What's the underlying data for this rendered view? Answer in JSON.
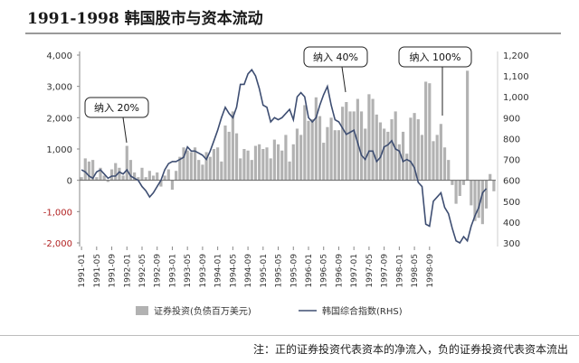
{
  "header": {
    "title": "1991-1998 韩国股市与资本流动"
  },
  "footnote": "注：正的证券投资代表资本的净流入，负的证券投资代表资本流出",
  "colors": {
    "bars": "#b2b2b2",
    "line": "#3e4e72",
    "negative_tick": "#b22222",
    "axis": "#888888"
  },
  "chart_data": {
    "type": "bar+line",
    "grid": false,
    "legend_position": "bottom-center",
    "y_left": {
      "range": [
        -2000,
        4000
      ],
      "ticks": [
        "4,000",
        "3,000",
        "2,000",
        "1,000",
        "0",
        "-1,000",
        "-2,000"
      ],
      "tick_values": [
        4000,
        3000,
        2000,
        1000,
        0,
        -1000,
        -2000
      ]
    },
    "y_right": {
      "range": [
        300,
        1200
      ],
      "ticks": [
        "1,200",
        "1,100",
        "1,000",
        "900",
        "800",
        "700",
        "600",
        "500",
        "400",
        "300"
      ],
      "tick_values": [
        1200,
        1100,
        1000,
        900,
        800,
        700,
        600,
        500,
        400,
        300
      ]
    },
    "x_ticks": [
      "1991-01",
      "1991-05",
      "1991-09",
      "1992-01",
      "1992-05",
      "1992-09",
      "1993-01",
      "1993-05",
      "1993-09",
      "1994-01",
      "1994-05",
      "1994-09",
      "1995-01",
      "1995-05",
      "1995-09",
      "1996-01",
      "1996-05",
      "1996-09",
      "1997-01",
      "1997-05",
      "1997-09",
      "1998-01",
      "1998-05",
      "1998-09"
    ],
    "series": [
      {
        "name": "证券投资(负债百万美元)",
        "type": "bar",
        "axis": "left",
        "values": [
          100,
          700,
          600,
          650,
          100,
          400,
          150,
          -50,
          350,
          550,
          400,
          150,
          1100,
          650,
          250,
          100,
          400,
          100,
          300,
          150,
          250,
          -200,
          150,
          350,
          -300,
          300,
          750,
          1050,
          950,
          900,
          1050,
          650,
          500,
          900,
          750,
          1000,
          1050,
          600,
          1750,
          1550,
          2200,
          1500,
          700,
          1000,
          950,
          650,
          1100,
          1150,
          1000,
          1050,
          700,
          1300,
          1150,
          950,
          1450,
          600,
          1150,
          1650,
          1450,
          2400,
          1900,
          1950,
          2650,
          2050,
          1200,
          1700,
          2000,
          1600,
          1600,
          2350,
          2500,
          2200,
          2200,
          2600,
          2200,
          1650,
          2750,
          2600,
          2100,
          1850,
          1650,
          1550,
          1950,
          2200,
          1150,
          1550,
          850,
          2000,
          2150,
          1950,
          1450,
          3150,
          3100,
          1250,
          1450,
          1800,
          1050,
          650,
          -150,
          -750,
          -500,
          -150,
          3500,
          -800,
          -1300,
          -1200,
          -1400,
          -900,
          200,
          -350
        ]
      },
      {
        "name": "韩国综合指数(RHS)",
        "type": "line",
        "axis": "right",
        "values": [
          650,
          640,
          620,
          610,
          640,
          650,
          630,
          610,
          620,
          620,
          640,
          630,
          650,
          620,
          610,
          600,
          570,
          550,
          520,
          540,
          570,
          600,
          650,
          680,
          690,
          690,
          700,
          710,
          760,
          740,
          740,
          730,
          720,
          700,
          740,
          790,
          840,
          900,
          950,
          920,
          900,
          950,
          1060,
          1060,
          1110,
          1130,
          1100,
          1040,
          960,
          950,
          880,
          900,
          890,
          900,
          920,
          940,
          890,
          1000,
          1020,
          1000,
          900,
          880,
          900,
          960,
          1010,
          1050,
          960,
          890,
          880,
          850,
          820,
          830,
          840,
          780,
          720,
          700,
          740,
          740,
          690,
          710,
          760,
          770,
          790,
          750,
          740,
          690,
          700,
          690,
          660,
          590,
          570,
          390,
          380,
          500,
          520,
          540,
          470,
          440,
          370,
          310,
          300,
          330,
          310,
          380,
          430,
          470,
          540,
          560
        ]
      }
    ],
    "annotations": [
      {
        "text": "纳入 20%",
        "x": "1992-01"
      },
      {
        "text": "纳入 40%",
        "x": "1996-01"
      },
      {
        "text": "纳入 100%",
        "x": "1998-01"
      }
    ]
  }
}
